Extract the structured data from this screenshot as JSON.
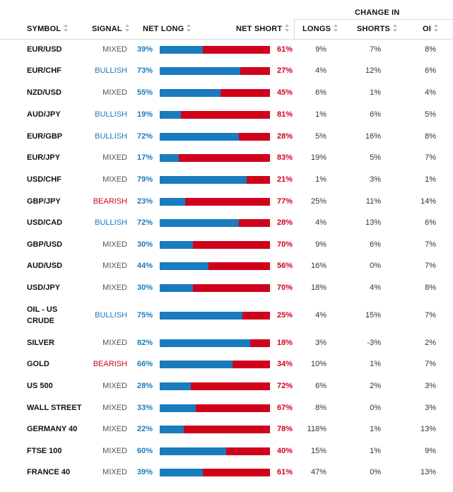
{
  "header": {
    "change_in": "CHANGE IN",
    "symbol": "SYMBOL",
    "signal": "SIGNAL",
    "net_long": "NET LONG",
    "net_short": "NET SHORT",
    "longs": "LONGS",
    "shorts": "SHORTS",
    "oi": "OI"
  },
  "colors": {
    "long": "#1a7bbd",
    "short": "#d0021b",
    "bullish": "#1a7bbd",
    "bearish": "#d0021b",
    "mixed": "#555555"
  },
  "rows": [
    {
      "symbol": "EUR/USD",
      "signal": "MIXED",
      "long": "39%",
      "short": "61%",
      "long_frac": 0.39,
      "chg_longs": "9%",
      "chg_shorts": "7%",
      "chg_oi": "8%"
    },
    {
      "symbol": "EUR/CHF",
      "signal": "BULLISH",
      "long": "73%",
      "short": "27%",
      "long_frac": 0.73,
      "chg_longs": "4%",
      "chg_shorts": "12%",
      "chg_oi": "6%"
    },
    {
      "symbol": "NZD/USD",
      "signal": "MIXED",
      "long": "55%",
      "short": "45%",
      "long_frac": 0.55,
      "chg_longs": "6%",
      "chg_shorts": "1%",
      "chg_oi": "4%"
    },
    {
      "symbol": "AUD/JPY",
      "signal": "BULLISH",
      "long": "19%",
      "short": "81%",
      "long_frac": 0.19,
      "chg_longs": "1%",
      "chg_shorts": "6%",
      "chg_oi": "5%"
    },
    {
      "symbol": "EUR/GBP",
      "signal": "BULLISH",
      "long": "72%",
      "short": "28%",
      "long_frac": 0.72,
      "chg_longs": "5%",
      "chg_shorts": "16%",
      "chg_oi": "8%"
    },
    {
      "symbol": "EUR/JPY",
      "signal": "MIXED",
      "long": "17%",
      "short": "83%",
      "long_frac": 0.17,
      "chg_longs": "19%",
      "chg_shorts": "5%",
      "chg_oi": "7%"
    },
    {
      "symbol": "USD/CHF",
      "signal": "MIXED",
      "long": "79%",
      "short": "21%",
      "long_frac": 0.79,
      "chg_longs": "1%",
      "chg_shorts": "3%",
      "chg_oi": "1%"
    },
    {
      "symbol": "GBP/JPY",
      "signal": "BEARISH",
      "long": "23%",
      "short": "77%",
      "long_frac": 0.23,
      "chg_longs": "25%",
      "chg_shorts": "11%",
      "chg_oi": "14%"
    },
    {
      "symbol": "USD/CAD",
      "signal": "BULLISH",
      "long": "72%",
      "short": "28%",
      "long_frac": 0.72,
      "chg_longs": "4%",
      "chg_shorts": "13%",
      "chg_oi": "6%"
    },
    {
      "symbol": "GBP/USD",
      "signal": "MIXED",
      "long": "30%",
      "short": "70%",
      "long_frac": 0.3,
      "chg_longs": "9%",
      "chg_shorts": "6%",
      "chg_oi": "7%"
    },
    {
      "symbol": "AUD/USD",
      "signal": "MIXED",
      "long": "44%",
      "short": "56%",
      "long_frac": 0.44,
      "chg_longs": "16%",
      "chg_shorts": "0%",
      "chg_oi": "7%"
    },
    {
      "symbol": "USD/JPY",
      "signal": "MIXED",
      "long": "30%",
      "short": "70%",
      "long_frac": 0.3,
      "chg_longs": "18%",
      "chg_shorts": "4%",
      "chg_oi": "8%"
    },
    {
      "symbol": "OIL - US CRUDE",
      "signal": "BULLISH",
      "long": "75%",
      "short": "25%",
      "long_frac": 0.75,
      "chg_longs": "4%",
      "chg_shorts": "15%",
      "chg_oi": "7%"
    },
    {
      "symbol": "SILVER",
      "signal": "MIXED",
      "long": "82%",
      "short": "18%",
      "long_frac": 0.82,
      "chg_longs": "3%",
      "chg_shorts": "-3%",
      "chg_oi": "2%"
    },
    {
      "symbol": "GOLD",
      "signal": "BEARISH",
      "long": "66%",
      "short": "34%",
      "long_frac": 0.66,
      "chg_longs": "10%",
      "chg_shorts": "1%",
      "chg_oi": "7%"
    },
    {
      "symbol": "US 500",
      "signal": "MIXED",
      "long": "28%",
      "short": "72%",
      "long_frac": 0.28,
      "chg_longs": "6%",
      "chg_shorts": "2%",
      "chg_oi": "3%"
    },
    {
      "symbol": "WALL STREET",
      "signal": "MIXED",
      "long": "33%",
      "short": "67%",
      "long_frac": 0.33,
      "chg_longs": "8%",
      "chg_shorts": "0%",
      "chg_oi": "3%"
    },
    {
      "symbol": "GERMANY 40",
      "signal": "MIXED",
      "long": "22%",
      "short": "78%",
      "long_frac": 0.22,
      "chg_longs": "118%",
      "chg_shorts": "1%",
      "chg_oi": "13%"
    },
    {
      "symbol": "FTSE 100",
      "signal": "MIXED",
      "long": "60%",
      "short": "40%",
      "long_frac": 0.6,
      "chg_longs": "15%",
      "chg_shorts": "1%",
      "chg_oi": "9%"
    },
    {
      "symbol": "FRANCE 40",
      "signal": "MIXED",
      "long": "39%",
      "short": "61%",
      "long_frac": 0.39,
      "chg_longs": "47%",
      "chg_shorts": "0%",
      "chg_oi": "13%"
    }
  ]
}
